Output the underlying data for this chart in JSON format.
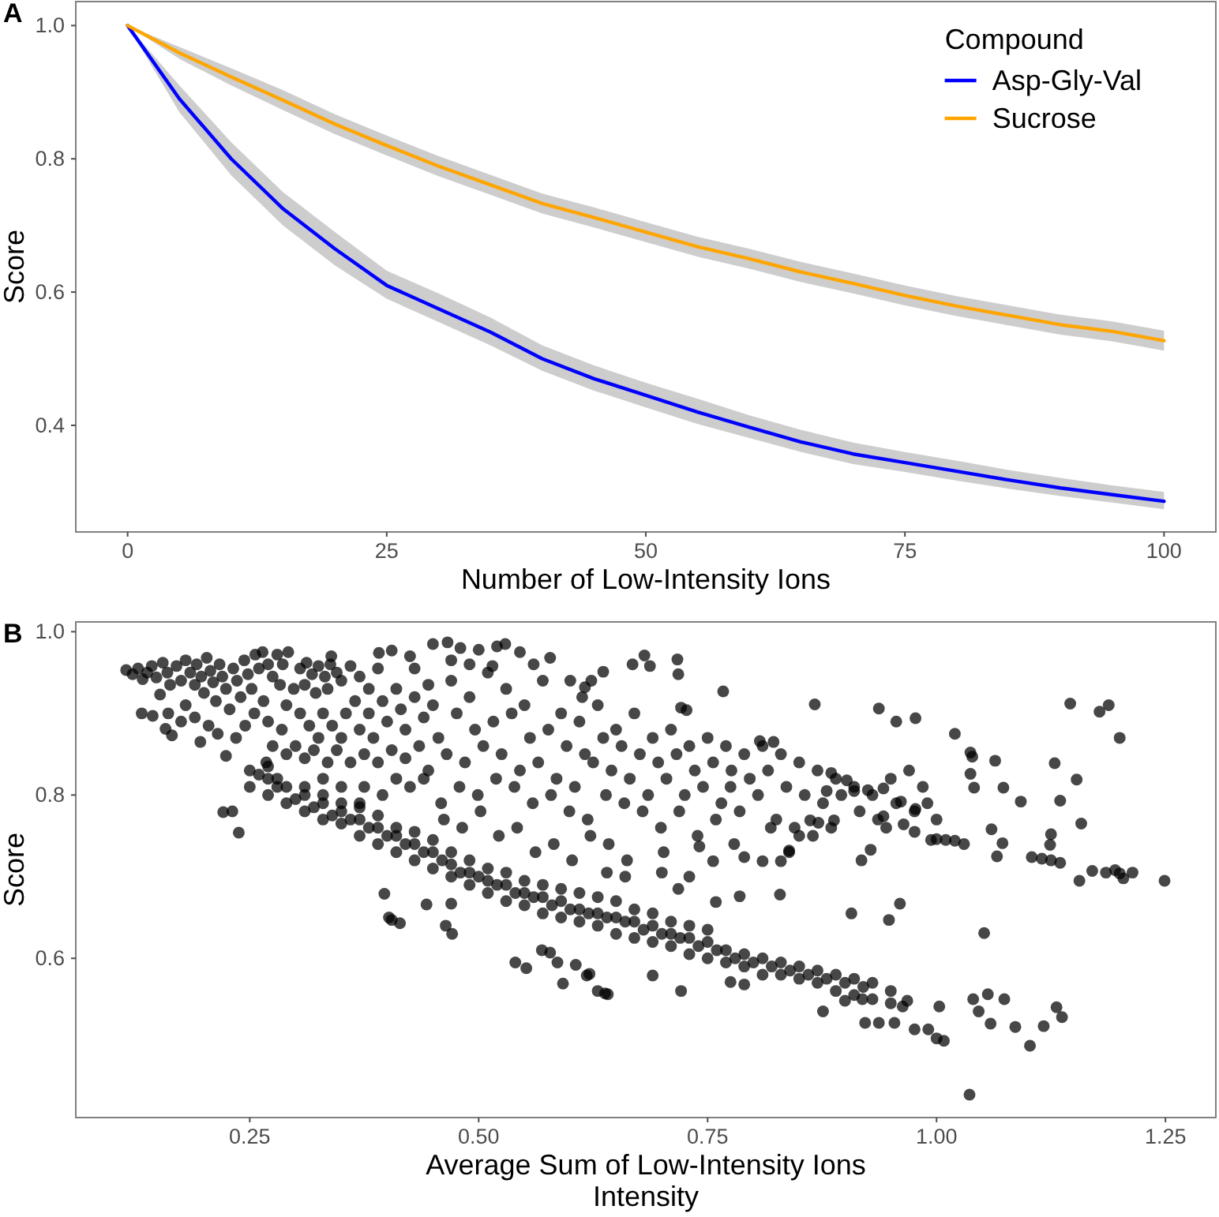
{
  "chart_data": [
    {
      "type": "line",
      "xlabel": "Number of Low-Intensity Ions",
      "ylabel": "Score",
      "legend_title": "Compound",
      "annotations": [
        "A"
      ],
      "legend": "top right",
      "x": [
        0,
        5,
        10,
        15,
        20,
        25,
        30,
        35,
        40,
        45,
        50,
        55,
        60,
        65,
        70,
        75,
        80,
        85,
        90,
        95,
        100
      ],
      "series": [
        {
          "name": "Asp-Gly-Val",
          "color": "#0000ff",
          "values": [
            1.0,
            0.89,
            0.8,
            0.725,
            0.665,
            0.61,
            0.575,
            0.54,
            0.5,
            0.47,
            0.445,
            0.42,
            0.397,
            0.375,
            0.357,
            0.344,
            0.331,
            0.318,
            0.306,
            0.296,
            0.286
          ],
          "lower": [
            1.0,
            0.87,
            0.775,
            0.7,
            0.64,
            0.59,
            0.555,
            0.52,
            0.482,
            0.452,
            0.427,
            0.402,
            0.381,
            0.36,
            0.342,
            0.33,
            0.317,
            0.305,
            0.294,
            0.284,
            0.274
          ],
          "upper": [
            1.0,
            0.91,
            0.825,
            0.75,
            0.69,
            0.632,
            0.598,
            0.562,
            0.52,
            0.49,
            0.464,
            0.44,
            0.415,
            0.393,
            0.374,
            0.36,
            0.347,
            0.333,
            0.321,
            0.31,
            0.3
          ]
        },
        {
          "name": "Sucrose",
          "color": "#ffa500",
          "values": [
            1.0,
            0.959,
            0.923,
            0.888,
            0.852,
            0.82,
            0.789,
            0.761,
            0.733,
            0.712,
            0.69,
            0.668,
            0.65,
            0.63,
            0.613,
            0.595,
            0.579,
            0.565,
            0.551,
            0.541,
            0.527
          ],
          "lower": [
            1.0,
            0.95,
            0.91,
            0.873,
            0.837,
            0.805,
            0.774,
            0.746,
            0.718,
            0.697,
            0.675,
            0.653,
            0.635,
            0.615,
            0.598,
            0.58,
            0.564,
            0.55,
            0.536,
            0.526,
            0.512
          ],
          "upper": [
            1.0,
            0.968,
            0.936,
            0.903,
            0.867,
            0.835,
            0.804,
            0.776,
            0.748,
            0.727,
            0.705,
            0.683,
            0.665,
            0.645,
            0.628,
            0.61,
            0.594,
            0.58,
            0.566,
            0.556,
            0.542
          ]
        }
      ],
      "xlim": [
        -5,
        105
      ],
      "xticks": [
        0,
        25,
        50,
        75,
        100
      ],
      "ylim": [
        0.24,
        1.036
      ],
      "yticks": [
        0.4,
        0.6,
        0.8,
        {
          "value": 1,
          "label": "1.0"
        }
      ]
    },
    {
      "type": "scatter",
      "xlabel": "Average Sum of Low-Intensity Ions\nIntensity",
      "ylabel": "Score",
      "annotations": [
        "B"
      ],
      "color": "#000000",
      "marker": "circle",
      "x": [
        0.115,
        0.122,
        0.128,
        0.133,
        0.138,
        0.143,
        0.148,
        0.152,
        0.155,
        0.16,
        0.163,
        0.132,
        0.144,
        0.161,
        0.158,
        0.165,
        0.17,
        0.175,
        0.18,
        0.185,
        0.19,
        0.192,
        0.197,
        0.2,
        0.203,
        0.207,
        0.21,
        0.213,
        0.217,
        0.22,
        0.224,
        0.228,
        0.232,
        0.236,
        0.24,
        0.244,
        0.248,
        0.252,
        0.256,
        0.26,
        0.264,
        0.27,
        0.275,
        0.28,
        0.286,
        0.292,
        0.18,
        0.19,
        0.205,
        0.196,
        0.215,
        0.224,
        0.235,
        0.245,
        0.255,
        0.265,
        0.27,
        0.283,
        0.29,
        0.298,
        0.221,
        0.231,
        0.238,
        0.175,
        0.305,
        0.312,
        0.318,
        0.325,
        0.332,
        0.338,
        0.345,
        0.31,
        0.322,
        0.335,
        0.35,
        0.36,
        0.37,
        0.38,
        0.39,
        0.391,
        0.405,
        0.339,
        0.425,
        0.43,
        0.305,
        0.315,
        0.325,
        0.33,
        0.34,
        0.35,
        0.355,
        0.365,
        0.37,
        0.38,
        0.385,
        0.395,
        0.4,
        0.41,
        0.415,
        0.42,
        0.43,
        0.44,
        0.445,
        0.3,
        0.31,
        0.32,
        0.335,
        0.345,
        0.36,
        0.375,
        0.39,
        0.405,
        0.42,
        0.435,
        0.44,
        0.425,
        0.41,
        0.395,
        0.375,
        0.33,
        0.35,
        0.37,
        0.28,
        0.29,
        0.268,
        0.275,
        0.285,
        0.397,
        0.402,
        0.405,
        0.414,
        0.443,
        0.47,
        0.464,
        0.471,
        0.25,
        0.25,
        0.27,
        0.27,
        0.27,
        0.29,
        0.29,
        0.31,
        0.31,
        0.31,
        0.33,
        0.33,
        0.33,
        0.35,
        0.35,
        0.35,
        0.37,
        0.37,
        0.37,
        0.39,
        0.39,
        0.39,
        0.41,
        0.41,
        0.41,
        0.43,
        0.43,
        0.43,
        0.45,
        0.45,
        0.45,
        0.47,
        0.47,
        0.47,
        0.49,
        0.49,
        0.49,
        0.51,
        0.51,
        0.51,
        0.53,
        0.53,
        0.53,
        0.55,
        0.55,
        0.55,
        0.57,
        0.57,
        0.57,
        0.59,
        0.59,
        0.59,
        0.61,
        0.61,
        0.61,
        0.63,
        0.63,
        0.63,
        0.65,
        0.65,
        0.65,
        0.67,
        0.67,
        0.67,
        0.69,
        0.69,
        0.69,
        0.71,
        0.71,
        0.71,
        0.73,
        0.73,
        0.73,
        0.75,
        0.75,
        0.75,
        0.77,
        0.77,
        0.79,
        0.79,
        0.81,
        0.81,
        0.83,
        0.83,
        0.85,
        0.85,
        0.87,
        0.87,
        0.89,
        0.89,
        0.91,
        0.91,
        0.93,
        0.93,
        0.95,
        0.95,
        0.26,
        0.28,
        0.3,
        0.32,
        0.34,
        0.36,
        0.38,
        0.4,
        0.42,
        0.44,
        0.46,
        0.48,
        0.5,
        0.52,
        0.54,
        0.56,
        0.58,
        0.6,
        0.62,
        0.64,
        0.66,
        0.68,
        0.7,
        0.72,
        0.74,
        0.76,
        0.78,
        0.8,
        0.82,
        0.84,
        0.86,
        0.88,
        0.9,
        0.92,
        0.54,
        0.552,
        0.569,
        0.578,
        0.586,
        0.592,
        0.606,
        0.618,
        0.621,
        0.63,
        0.641,
        0.638,
        0.69,
        0.721,
        0.775,
        0.79,
        0.876,
        0.9,
        0.919,
        0.963,
        0.968,
        1.003,
        0.922,
        0.937,
        0.954,
        0.976,
        0.991,
        1.0,
        1.008,
        0.948,
        0.907,
        0.96,
        1.052,
        1.036,
        1.102,
        1.117,
        1.131,
        1.137,
        1.04,
        1.056,
        1.074,
        1.059,
        1.046,
        1.086,
        0.45,
        0.466,
        0.48,
        0.5,
        0.52,
        0.529,
        0.545,
        0.47,
        0.49,
        0.515,
        0.56,
        0.578,
        0.6,
        0.613,
        0.616,
        0.623,
        0.636,
        0.668,
        0.681,
        0.687,
        0.717,
        0.718,
        0.767,
        0.721,
        0.727,
        0.45,
        0.456,
        0.445,
        0.459,
        0.47,
        0.476,
        0.465,
        0.479,
        0.462,
        0.49,
        0.496,
        0.485,
        0.499,
        0.482,
        0.51,
        0.516,
        0.505,
        0.519,
        0.502,
        0.53,
        0.536,
        0.525,
        0.539,
        0.522,
        0.55,
        0.556,
        0.545,
        0.559,
        0.542,
        0.57,
        0.576,
        0.565,
        0.579,
        0.562,
        0.59,
        0.596,
        0.585,
        0.599,
        0.582,
        0.61,
        0.616,
        0.605,
        0.619,
        0.602,
        0.63,
        0.636,
        0.625,
        0.639,
        0.622,
        0.65,
        0.656,
        0.645,
        0.659,
        0.642,
        0.67,
        0.676,
        0.665,
        0.679,
        0.662,
        0.69,
        0.696,
        0.685,
        0.699,
        0.71,
        0.716,
        0.705,
        0.719,
        0.702,
        0.73,
        0.736,
        0.725,
        0.739,
        0.75,
        0.756,
        0.745,
        0.759,
        0.77,
        0.776,
        0.765,
        0.779,
        0.79,
        0.796,
        0.785,
        0.81,
        0.816,
        0.805,
        0.819,
        0.83,
        0.836,
        0.825,
        0.839,
        0.85,
        0.856,
        0.845,
        0.87,
        0.876,
        0.865,
        0.89,
        0.896,
        0.885,
        0.91,
        0.916,
        0.93,
        0.936,
        0.95,
        0.956,
        0.945,
        0.97,
        0.976,
        0.807,
        0.822,
        0.867,
        0.937,
        0.956,
        0.977,
        1.02,
        0.925,
        0.942,
        0.961,
        0.977,
        0.976,
        0.964,
        0.942,
        0.928,
        0.918,
        0.871,
        0.862,
        0.85,
        0.83,
        0.839,
        0.829,
        0.785,
        0.759,
        0.718,
        0.741,
        0.756,
        0.79,
        0.81,
        0.885,
        0.902,
        0.91,
        0.88,
        0.888,
        0.64,
        0.66,
        0.7,
        0.73,
        0.775,
        1.146,
        1.178,
        1.188,
        1.2,
        1.037,
        1.039,
        1.037,
        1.041,
        1.073,
        1.064,
        1.092,
        1.135,
        1.129,
        1.153,
        1.158,
        1.125,
        1.124,
        1.06,
        1.072,
        1.066,
        0.994,
        1.0,
        1.01,
        1.02,
        1.03,
        1.104,
        1.115,
        1.125,
        1.135,
        1.17,
        1.185,
        1.195,
        1.2,
        1.214,
        1.249,
        1.156,
        1.204,
        0.99,
        1.0,
        0.985
      ],
      "values": [
        0.953,
        0.948,
        0.955,
        0.942,
        0.95,
        0.958,
        0.944,
        0.923,
        0.962,
        0.95,
        0.935,
        0.9,
        0.897,
        0.9,
        0.881,
        0.873,
        0.958,
        0.94,
        0.965,
        0.95,
        0.935,
        0.96,
        0.945,
        0.925,
        0.968,
        0.952,
        0.938,
        0.915,
        0.96,
        0.945,
        0.93,
        0.905,
        0.955,
        0.94,
        0.92,
        0.965,
        0.948,
        0.93,
        0.972,
        0.955,
        0.975,
        0.96,
        0.945,
        0.972,
        0.96,
        0.975,
        0.91,
        0.895,
        0.885,
        0.865,
        0.875,
        0.848,
        0.87,
        0.885,
        0.9,
        0.915,
        0.89,
        0.935,
        0.91,
        0.93,
        0.779,
        0.78,
        0.754,
        0.89,
        0.955,
        0.962,
        0.948,
        0.958,
        0.945,
        0.96,
        0.95,
        0.935,
        0.925,
        0.93,
        0.94,
        0.958,
        0.945,
        0.93,
        0.955,
        0.974,
        0.977,
        0.97,
        0.97,
        0.955,
        0.9,
        0.885,
        0.87,
        0.9,
        0.885,
        0.87,
        0.9,
        0.915,
        0.88,
        0.9,
        0.87,
        0.915,
        0.89,
        0.93,
        0.905,
        0.88,
        0.92,
        0.895,
        0.935,
        0.86,
        0.845,
        0.855,
        0.84,
        0.855,
        0.84,
        0.85,
        0.84,
        0.855,
        0.845,
        0.86,
        0.82,
        0.81,
        0.82,
        0.8,
        0.81,
        0.82,
        0.81,
        0.79,
        0.82,
        0.85,
        0.84,
        0.86,
        0.88,
        0.679,
        0.65,
        0.647,
        0.643,
        0.666,
        0.667,
        0.64,
        0.63,
        0.83,
        0.81,
        0.82,
        0.8,
        0.835,
        0.81,
        0.79,
        0.8,
        0.78,
        0.81,
        0.79,
        0.77,
        0.8,
        0.78,
        0.765,
        0.79,
        0.77,
        0.75,
        0.785,
        0.76,
        0.74,
        0.775,
        0.75,
        0.73,
        0.76,
        0.74,
        0.72,
        0.755,
        0.73,
        0.71,
        0.745,
        0.715,
        0.7,
        0.73,
        0.705,
        0.69,
        0.72,
        0.695,
        0.68,
        0.71,
        0.69,
        0.67,
        0.705,
        0.68,
        0.665,
        0.695,
        0.675,
        0.655,
        0.69,
        0.67,
        0.65,
        0.685,
        0.66,
        0.645,
        0.68,
        0.655,
        0.64,
        0.675,
        0.65,
        0.63,
        0.67,
        0.645,
        0.625,
        0.66,
        0.64,
        0.62,
        0.655,
        0.63,
        0.615,
        0.645,
        0.625,
        0.605,
        0.64,
        0.62,
        0.6,
        0.635,
        0.61,
        0.595,
        0.605,
        0.59,
        0.6,
        0.58,
        0.595,
        0.58,
        0.59,
        0.575,
        0.585,
        0.57,
        0.58,
        0.56,
        0.575,
        0.555,
        0.57,
        0.55,
        0.56,
        0.545,
        0.825,
        0.81,
        0.795,
        0.785,
        0.775,
        0.77,
        0.76,
        0.75,
        0.74,
        0.73,
        0.72,
        0.705,
        0.7,
        0.69,
        0.68,
        0.675,
        0.665,
        0.66,
        0.655,
        0.65,
        0.645,
        0.635,
        0.63,
        0.625,
        0.615,
        0.61,
        0.6,
        0.595,
        0.59,
        0.585,
        0.58,
        0.575,
        0.57,
        0.565,
        0.595,
        0.588,
        0.61,
        0.607,
        0.595,
        0.569,
        0.592,
        0.579,
        0.581,
        0.56,
        0.556,
        0.557,
        0.579,
        0.56,
        0.571,
        0.568,
        0.535,
        0.548,
        0.55,
        0.541,
        0.548,
        0.541,
        0.521,
        0.521,
        0.521,
        0.513,
        0.513,
        0.502,
        0.499,
        0.647,
        0.655,
        0.667,
        0.631,
        0.433,
        0.493,
        0.517,
        0.54,
        0.528,
        0.55,
        0.556,
        0.55,
        0.52,
        0.535,
        0.516,
        0.985,
        0.987,
        0.98,
        0.978,
        0.982,
        0.985,
        0.975,
        0.965,
        0.96,
        0.958,
        0.96,
        0.968,
        0.94,
        0.92,
        0.932,
        0.94,
        0.951,
        0.96,
        0.971,
        0.958,
        0.966,
        0.948,
        0.927,
        0.907,
        0.904,
        0.91,
        0.87,
        0.83,
        0.79,
        0.94,
        0.9,
        0.85,
        0.81,
        0.77,
        0.92,
        0.88,
        0.84,
        0.8,
        0.76,
        0.95,
        0.89,
        0.86,
        0.82,
        0.78,
        0.93,
        0.9,
        0.85,
        0.81,
        0.75,
        0.91,
        0.87,
        0.83,
        0.79,
        0.76,
        0.94,
        0.88,
        0.84,
        0.8,
        0.73,
        0.9,
        0.86,
        0.82,
        0.78,
        0.74,
        0.89,
        0.85,
        0.81,
        0.77,
        0.72,
        0.91,
        0.87,
        0.84,
        0.8,
        0.75,
        0.88,
        0.86,
        0.83,
        0.79,
        0.74,
        0.9,
        0.85,
        0.82,
        0.78,
        0.72,
        0.87,
        0.84,
        0.8,
        0.76,
        0.88,
        0.85,
        0.82,
        0.78,
        0.73,
        0.86,
        0.83,
        0.8,
        0.75,
        0.87,
        0.84,
        0.81,
        0.77,
        0.86,
        0.83,
        0.79,
        0.74,
        0.85,
        0.82,
        0.78,
        0.86,
        0.83,
        0.8,
        0.76,
        0.85,
        0.81,
        0.77,
        0.73,
        0.84,
        0.8,
        0.76,
        0.83,
        0.79,
        0.75,
        0.82,
        0.8,
        0.76,
        0.81,
        0.78,
        0.8,
        0.77,
        0.82,
        0.79,
        0.76,
        0.83,
        0.78,
        0.866,
        0.865,
        0.911,
        0.906,
        0.89,
        0.894,
        0.875,
        0.806,
        0.808,
        0.792,
        0.783,
        0.755,
        0.764,
        0.774,
        0.733,
        0.72,
        0.766,
        0.769,
        0.75,
        0.719,
        0.732,
        0.678,
        0.676,
        0.669,
        0.685,
        0.737,
        0.719,
        0.724,
        0.719,
        0.827,
        0.818,
        0.805,
        0.805,
        0.769,
        0.705,
        0.7,
        0.705,
        0.7,
        0.81,
        0.912,
        0.902,
        0.91,
        0.87,
        0.852,
        0.847,
        0.826,
        0.809,
        0.809,
        0.842,
        0.792,
        0.793,
        0.839,
        0.819,
        0.765,
        0.752,
        0.739,
        0.758,
        0.741,
        0.725,
        0.745,
        0.746,
        0.745,
        0.744,
        0.74,
        0.724,
        0.722,
        0.72,
        0.717,
        0.707,
        0.705,
        0.708,
        0.704,
        0.705,
        0.695,
        0.695,
        0.698,
        0.79,
        0.77,
        0.81
      ],
      "xlim": [
        0.06,
        1.305
      ],
      "xticks": [
        0.25,
        {
          "value": 0.5,
          "label": "0.50"
        },
        0.75,
        {
          "value": 1,
          "label": "1.00"
        },
        1.25
      ],
      "ylim": [
        0.405,
        1.012
      ],
      "yticks": [
        0.6,
        0.8,
        {
          "value": 1,
          "label": "1.0"
        }
      ]
    }
  ]
}
